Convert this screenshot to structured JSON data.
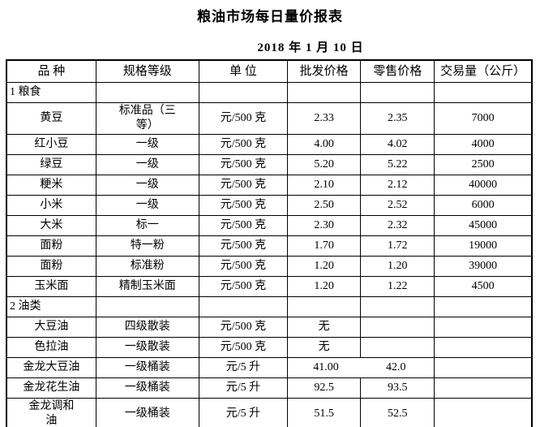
{
  "page": {
    "title": "粮油市场每日量价报表",
    "date": "2018 年 1 月 10 日"
  },
  "table": {
    "headers": [
      "品 种",
      "规格等级",
      "单 位",
      "批发价格",
      "零售价格",
      "交易量（公斤）"
    ],
    "rows": [
      {
        "type": "section",
        "label": "1 粮食"
      },
      {
        "type": "item",
        "name": "黄豆",
        "spec": "标准品（三\n等）",
        "unit": "元/500 克",
        "wholesale": "2.33",
        "retail": "2.35",
        "volume": "7000"
      },
      {
        "type": "item",
        "name": "红小豆",
        "spec": "一级",
        "unit": "元/500 克",
        "wholesale": "4.00",
        "retail": "4.02",
        "volume": "4000"
      },
      {
        "type": "item",
        "name": "绿豆",
        "spec": "一级",
        "unit": "元/500 克",
        "wholesale": "5.20",
        "retail": "5.22",
        "volume": "2500"
      },
      {
        "type": "item",
        "name": "粳米",
        "spec": "一级",
        "unit": "元/500 克",
        "wholesale": "2.10",
        "retail": "2.12",
        "volume": "40000"
      },
      {
        "type": "item",
        "name": "小米",
        "spec": "一级",
        "unit": "元/500 克",
        "wholesale": "2.50",
        "retail": "2.52",
        "volume": "6000"
      },
      {
        "type": "item",
        "name": "大米",
        "spec": "标一",
        "unit": "元/500 克",
        "wholesale": "2.30",
        "retail": "2.32",
        "volume": "45000"
      },
      {
        "type": "item",
        "name": "面粉",
        "spec": "特一粉",
        "unit": "元/500 克",
        "wholesale": "1.70",
        "retail": "1.72",
        "volume": "19000"
      },
      {
        "type": "item",
        "name": "面粉",
        "spec": "标准粉",
        "unit": "元/500 克",
        "wholesale": "1.20",
        "retail": "1.20",
        "volume": "39000"
      },
      {
        "type": "item",
        "name": "玉米面",
        "spec": "精制玉米面",
        "unit": "元/500 克",
        "wholesale": "1.20",
        "retail": "1.22",
        "volume": "4500"
      },
      {
        "type": "section",
        "label": "2 油类"
      },
      {
        "type": "item",
        "name": "大豆油",
        "spec": "四级散装",
        "unit": "元/500 克",
        "wholesale": "无",
        "retail": "",
        "volume": ""
      },
      {
        "type": "item",
        "name": "色拉油",
        "spec": "一级散装",
        "unit": "元/500 克",
        "wholesale": "无",
        "retail": "",
        "volume": ""
      },
      {
        "type": "item",
        "name": "金龙大豆油",
        "spec": "一级桶装",
        "unit": "元/5 升",
        "wholesale": "41.00",
        "retail": "42.0",
        "volume": "",
        "merged_price_cell": true
      },
      {
        "type": "item",
        "name": "金龙花生油",
        "spec": "一级桶装",
        "unit": "元/5 升",
        "wholesale": "92.5",
        "retail": "93.5",
        "volume": ""
      },
      {
        "type": "item",
        "name": "金龙调和\n油",
        "spec": "一级桶装",
        "unit": "元/5 升",
        "wholesale": "51.5",
        "retail": "52.5",
        "volume": ""
      }
    ]
  }
}
